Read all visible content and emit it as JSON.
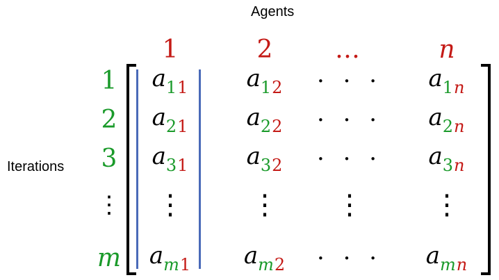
{
  "labels": {
    "columns_title": "Agents",
    "rows_title": "Iterations"
  },
  "colors": {
    "red": "#c41a16",
    "green": "#1a9a2a",
    "black": "#000000",
    "highlight": "#4a6ab8"
  },
  "column_headers": [
    "1",
    "2",
    "…",
    "n"
  ],
  "row_headers": [
    "1",
    "2",
    "3",
    "⋮",
    "m"
  ],
  "matrix": {
    "base": "a",
    "horizontal_dots": "· · ·",
    "vertical_dots": "⋮",
    "rows": [
      [
        {
          "r": "1",
          "c": "1"
        },
        {
          "r": "1",
          "c": "2"
        },
        "dots",
        {
          "r": "1",
          "c": "n"
        }
      ],
      [
        {
          "r": "2",
          "c": "1"
        },
        {
          "r": "2",
          "c": "2"
        },
        "dots",
        {
          "r": "2",
          "c": "n"
        }
      ],
      [
        {
          "r": "3",
          "c": "1"
        },
        {
          "r": "3",
          "c": "2"
        },
        "dots",
        {
          "r": "3",
          "c": "n"
        }
      ],
      [
        "vdots",
        "vdots",
        "vdots",
        "vdots"
      ],
      [
        {
          "r": "m",
          "c": "1"
        },
        {
          "r": "m",
          "c": "2"
        },
        "dots",
        {
          "r": "m",
          "c": "n"
        }
      ]
    ]
  },
  "highlighted_column": 1
}
